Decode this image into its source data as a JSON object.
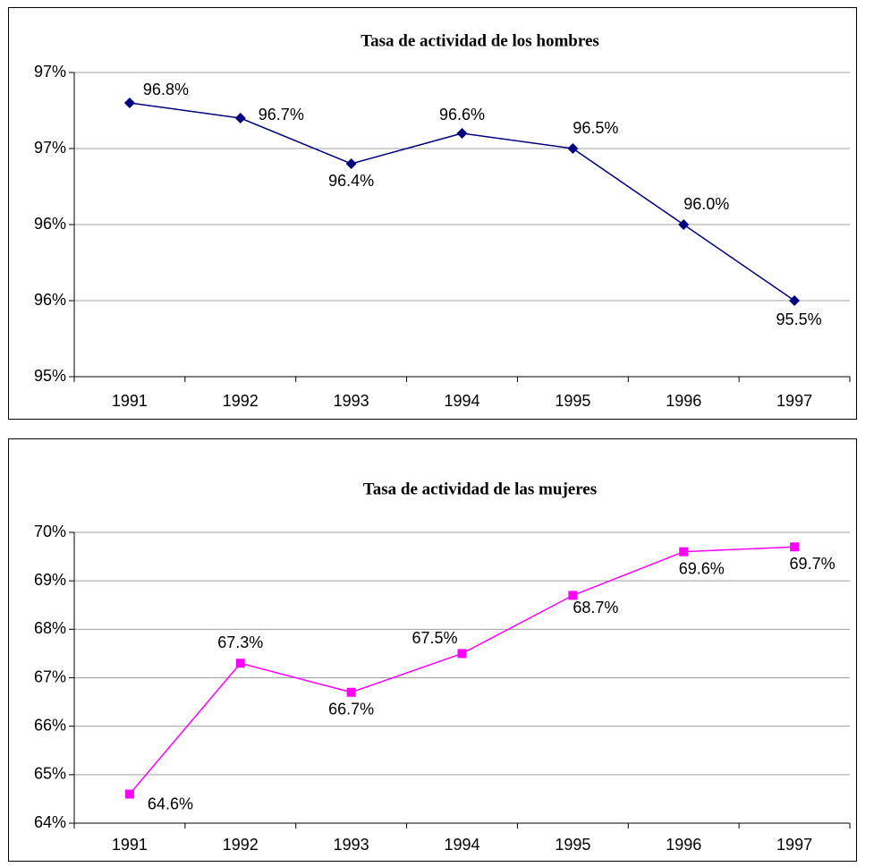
{
  "chart_data": [
    {
      "type": "line",
      "title": "Tasa de actividad de los hombres",
      "categories": [
        "1991",
        "1992",
        "1993",
        "1994",
        "1995",
        "1996",
        "1997"
      ],
      "values": [
        96.8,
        96.7,
        96.4,
        96.6,
        96.5,
        96.0,
        95.5
      ],
      "value_labels": [
        "96.8%",
        "96.7%",
        "96.4%",
        "96.6%",
        "96.5%",
        "96.0%",
        "95.5%"
      ],
      "color": "#000080",
      "marker": "diamond",
      "ylim": [
        95,
        97
      ],
      "yticks": [
        {
          "value": 95,
          "label": "95%"
        },
        {
          "value": 95.5,
          "label": "96%"
        },
        {
          "value": 96,
          "label": "96%"
        },
        {
          "value": 96.5,
          "label": "97%"
        },
        {
          "value": 97,
          "label": "97%"
        }
      ],
      "grid": true
    },
    {
      "type": "line",
      "title": "Tasa de actividad de las mujeres",
      "categories": [
        "1991",
        "1992",
        "1993",
        "1994",
        "1995",
        "1996",
        "1997"
      ],
      "values": [
        64.6,
        67.3,
        66.7,
        67.5,
        68.7,
        69.6,
        69.7
      ],
      "value_labels": [
        "64.6%",
        "67.3%",
        "66.7%",
        "67.5%",
        "68.7%",
        "69.6%",
        "69.7%"
      ],
      "color": "#ff00ff",
      "marker": "square",
      "ylim": [
        64,
        70
      ],
      "yticks": [
        {
          "value": 64,
          "label": "64%"
        },
        {
          "value": 65,
          "label": "65%"
        },
        {
          "value": 66,
          "label": "66%"
        },
        {
          "value": 67,
          "label": "67%"
        },
        {
          "value": 68,
          "label": "68%"
        },
        {
          "value": 69,
          "label": "69%"
        },
        {
          "value": 70,
          "label": "70%"
        }
      ],
      "grid": true
    }
  ]
}
